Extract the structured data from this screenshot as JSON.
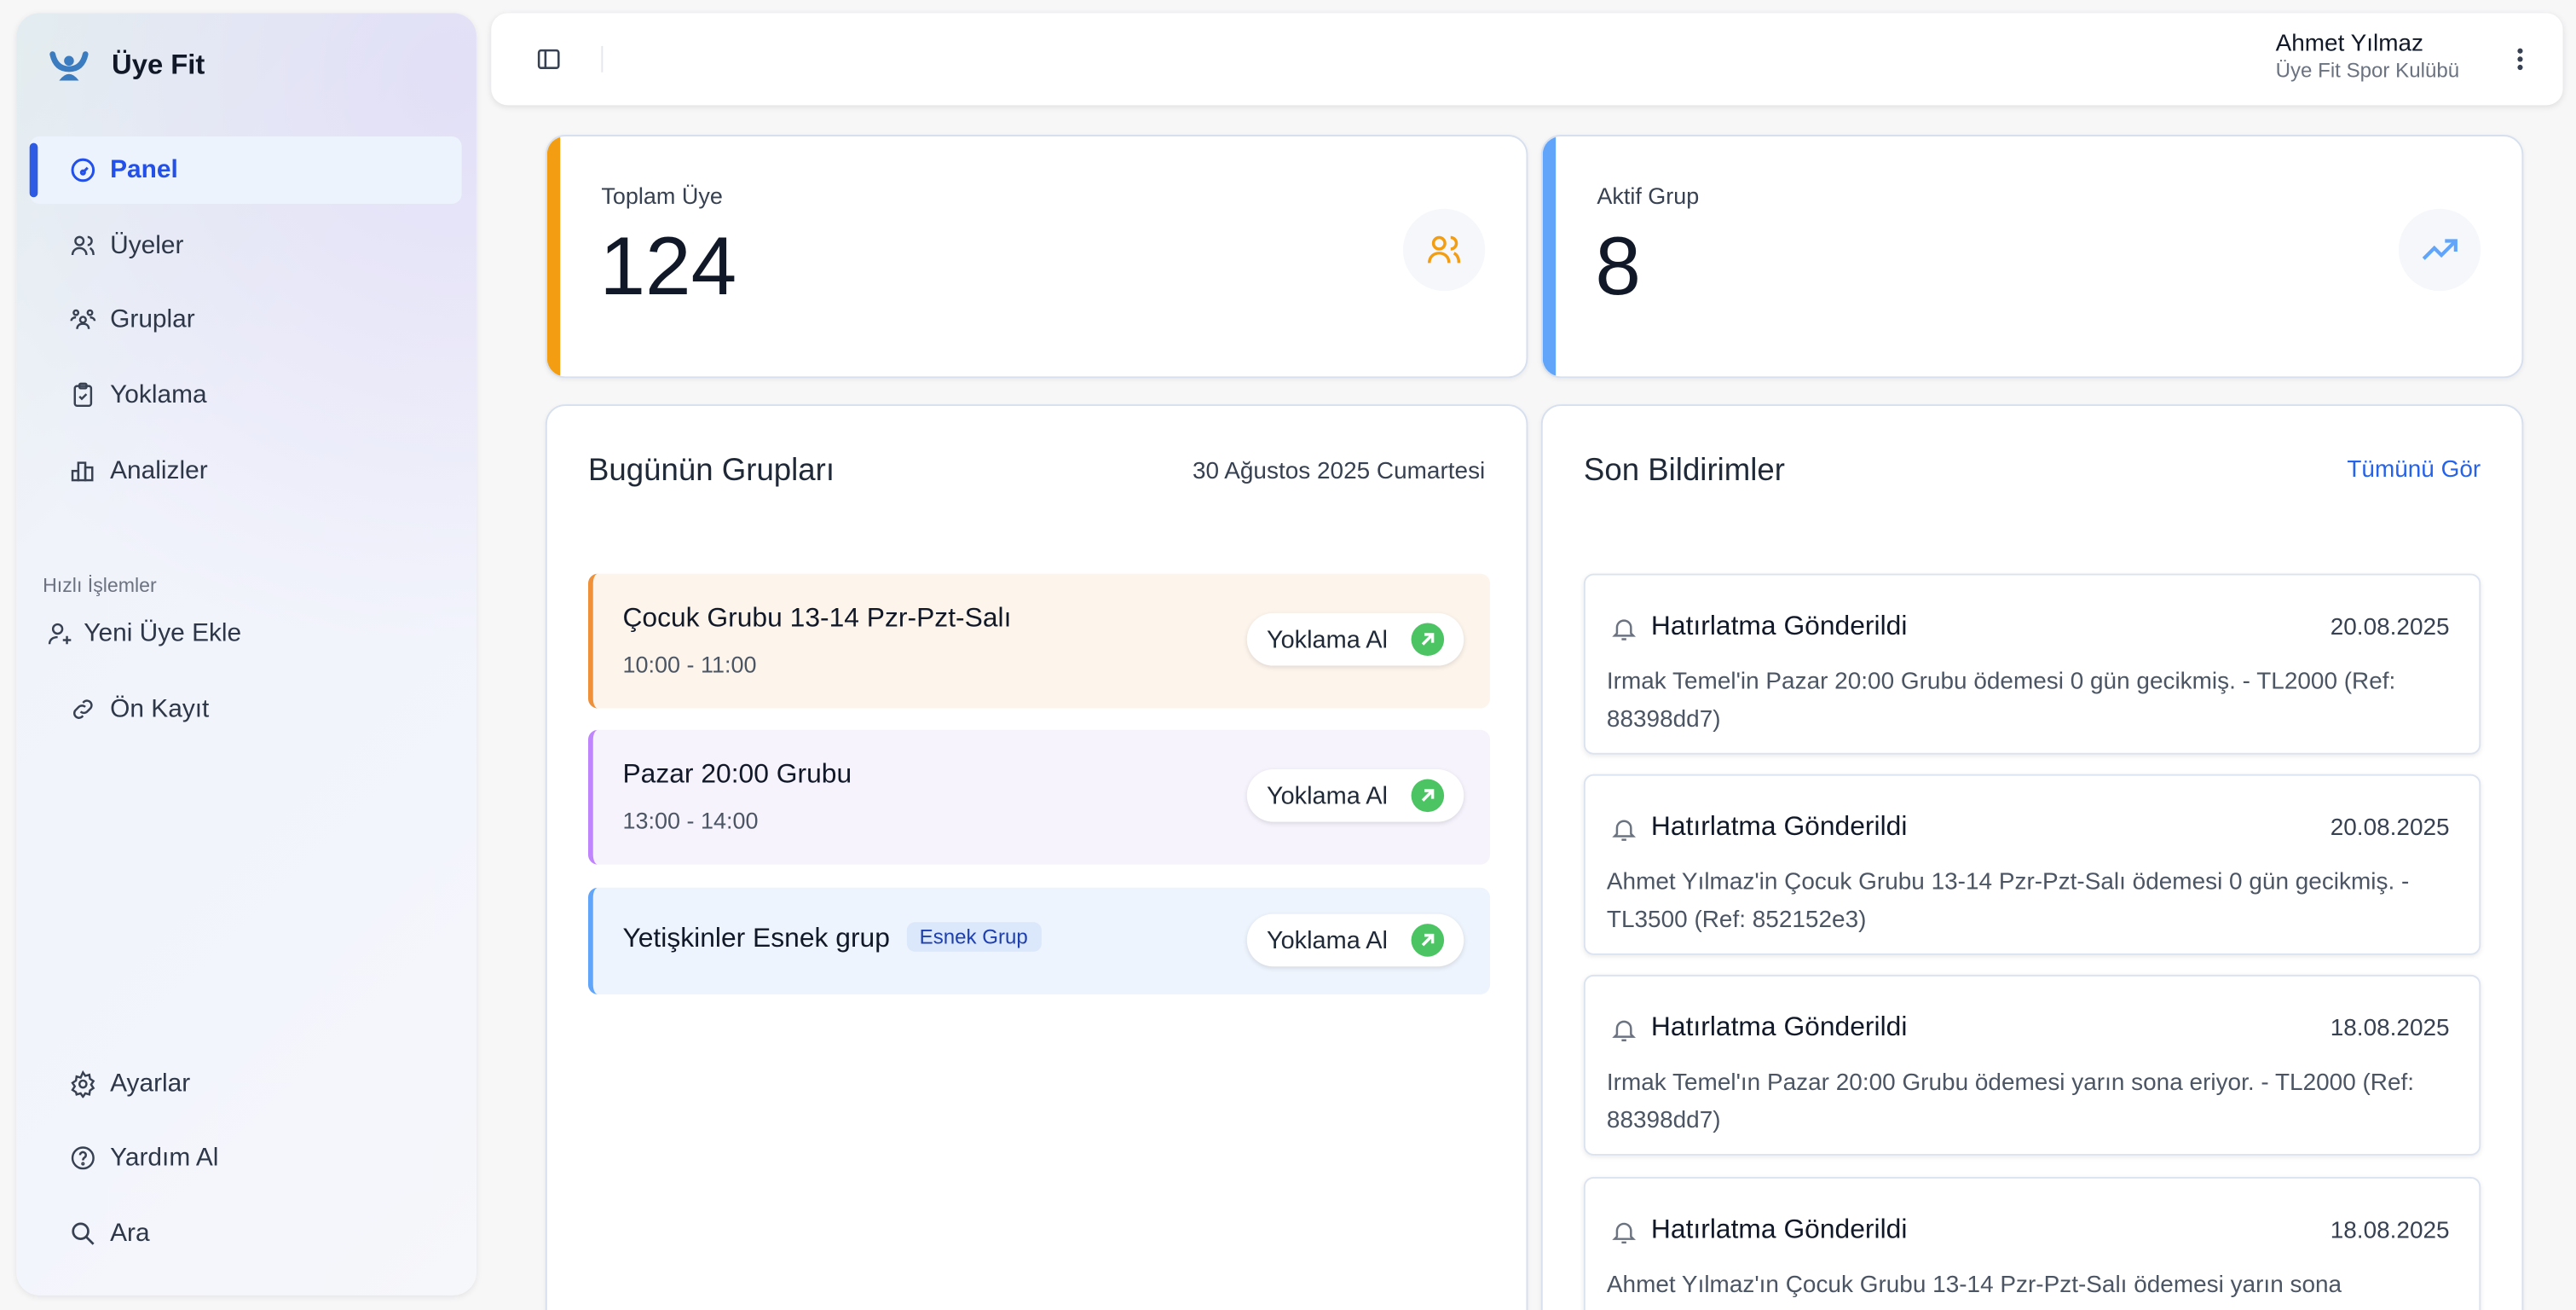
{
  "app": {
    "name": "Üye Fit"
  },
  "sidebar": {
    "items": [
      {
        "label": "Panel",
        "icon": "gauge-icon",
        "active": true
      },
      {
        "label": "Üyeler",
        "icon": "users-icon"
      },
      {
        "label": "Gruplar",
        "icon": "group-icon"
      },
      {
        "label": "Yoklama",
        "icon": "clipboard-check-icon"
      },
      {
        "label": "Analizler",
        "icon": "bar-chart-icon"
      }
    ],
    "quick_title": "Hızlı İşlemler",
    "quick": [
      {
        "label": "Yeni Üye Ekle",
        "icon": "user-plus-icon"
      },
      {
        "label": "Ön Kayıt",
        "icon": "link-icon"
      }
    ],
    "bottom": [
      {
        "label": "Ayarlar",
        "icon": "gear-icon"
      },
      {
        "label": "Yardım Al",
        "icon": "help-circle-icon"
      },
      {
        "label": "Ara",
        "icon": "search-icon"
      }
    ]
  },
  "header": {
    "user_name": "Ahmet Yılmaz",
    "club": "Üye Fit Spor Kulübü"
  },
  "stats": [
    {
      "label": "Toplam Üye",
      "value": "124",
      "color": "#f29d12",
      "icon": "users-icon"
    },
    {
      "label": "Aktif Grup",
      "value": "8",
      "color": "#60a5fa",
      "icon": "trending-up-icon"
    }
  ],
  "today": {
    "title": "Bugünün Grupları",
    "date": "30 Ağustos 2025 Cumartesi",
    "button_label": "Yoklama Al",
    "groups": [
      {
        "name": "Çocuk Grubu 13-14 Pzr-Pzt-Salı",
        "time": "10:00 - 11:00",
        "color": "#f0913a",
        "bg": "#fdf5ec"
      },
      {
        "name": "Pazar 20:00 Grubu",
        "time": "13:00 - 14:00",
        "color": "#c084fc",
        "bg": "#f6f3fd"
      },
      {
        "name": "Yetişkinler Esnek grup",
        "badge": "Esnek Grup",
        "color": "#60a5fa",
        "bg": "#eef4fd"
      }
    ]
  },
  "notifications": {
    "title": "Son Bildirimler",
    "see_all": "Tümünü Gör",
    "items": [
      {
        "title": "Hatırlatma Gönderildi",
        "date": "20.08.2025",
        "body": "Irmak Temel'in Pazar 20:00 Grubu ödemesi 0 gün gecikmiş. - TL2000 (Ref: 88398dd7)"
      },
      {
        "title": "Hatırlatma Gönderildi",
        "date": "20.08.2025",
        "body": "Ahmet Yılmaz'in Çocuk Grubu 13-14 Pzr-Pzt-Salı ödemesi 0 gün gecikmiş. - TL3500 (Ref: 852152e3)"
      },
      {
        "title": "Hatırlatma Gönderildi",
        "date": "18.08.2025",
        "body": "Irmak Temel'ın Pazar 20:00 Grubu ödemesi yarın sona eriyor. - TL2000 (Ref: 88398dd7)"
      },
      {
        "title": "Hatırlatma Gönderildi",
        "date": "18.08.2025",
        "body": "Ahmet Yılmaz'ın Çocuk Grubu 13-14 Pzr-Pzt-Salı ödemesi yarın sona"
      }
    ]
  }
}
